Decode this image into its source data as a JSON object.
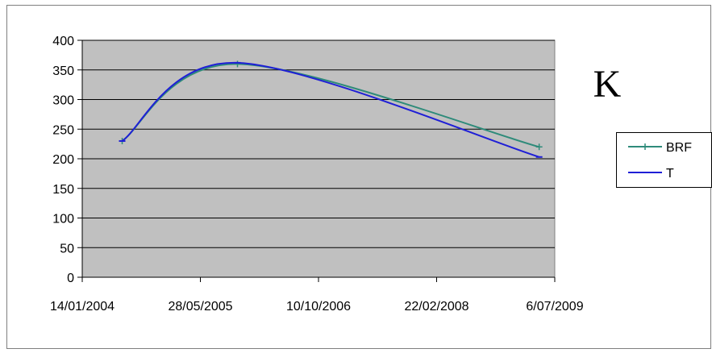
{
  "chart_data": {
    "type": "line",
    "title": "K",
    "xlabel": "",
    "ylabel": "",
    "x_ticks": [
      "14/01/2004",
      "28/05/2005",
      "10/10/2006",
      "22/02/2008",
      "6/07/2009"
    ],
    "xlim": [
      "2004-01-14",
      "2009-07-06"
    ],
    "ylim": [
      0,
      400
    ],
    "y_ticks": [
      0,
      50,
      100,
      150,
      200,
      250,
      300,
      350,
      400
    ],
    "grid": "horizontal",
    "legend": "right",
    "series": [
      {
        "name": "BRF",
        "color": "#2e8b7a",
        "marker": "plus",
        "x": [
          "2004-07-01",
          "2005-11-01",
          "2009-05-01"
        ],
        "y": [
          230,
          360,
          220
        ]
      },
      {
        "name": "T",
        "color": "#1f1fd6",
        "marker": "dash",
        "x": [
          "2004-07-01",
          "2005-11-01",
          "2009-05-01"
        ],
        "y": [
          230,
          362,
          203
        ]
      }
    ]
  },
  "colors": {
    "plot_background": "#c0c0c0",
    "frame_border": "#7f7f7f",
    "axis": "#000000"
  }
}
